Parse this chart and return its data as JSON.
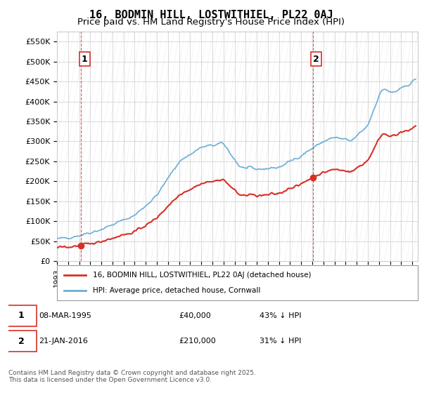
{
  "title": "16, BODMIN HILL, LOSTWITHIEL, PL22 0AJ",
  "subtitle": "Price paid vs. HM Land Registry's House Price Index (HPI)",
  "ylabel": "",
  "ylim": [
    0,
    575000
  ],
  "yticks": [
    0,
    50000,
    100000,
    150000,
    200000,
    250000,
    300000,
    350000,
    400000,
    450000,
    500000,
    550000
  ],
  "ytick_labels": [
    "£0",
    "£50K",
    "£100K",
    "£150K",
    "£200K",
    "£250K",
    "£300K",
    "£350K",
    "£400K",
    "£450K",
    "£500K",
    "£550K"
  ],
  "hpi_color": "#6baed6",
  "price_color": "#d73027",
  "marker_color": "#d73027",
  "vline_color": "#d73027",
  "sale1_date_num": 1995.18,
  "sale1_price": 40000,
  "sale1_label": "1",
  "sale2_date_num": 2016.06,
  "sale2_price": 210000,
  "sale2_label": "2",
  "legend_line1": "16, BODMIN HILL, LOSTWITHIEL, PL22 0AJ (detached house)",
  "legend_line2": "HPI: Average price, detached house, Cornwall",
  "footnote": "Contains HM Land Registry data © Crown copyright and database right 2025.\nThis data is licensed under the Open Government Licence v3.0.",
  "table_row1": "1    08-MAR-1995         £40,000        43% ↓ HPI",
  "table_row2": "2    21-JAN-2016         £210,000      31% ↓ HPI",
  "bg_color": "#ffffff",
  "grid_color": "#cccccc",
  "hatch_color": "#dddddd",
  "title_fontsize": 11,
  "subtitle_fontsize": 9.5,
  "tick_fontsize": 8,
  "xmin": 1993.0,
  "xmax": 2025.5
}
